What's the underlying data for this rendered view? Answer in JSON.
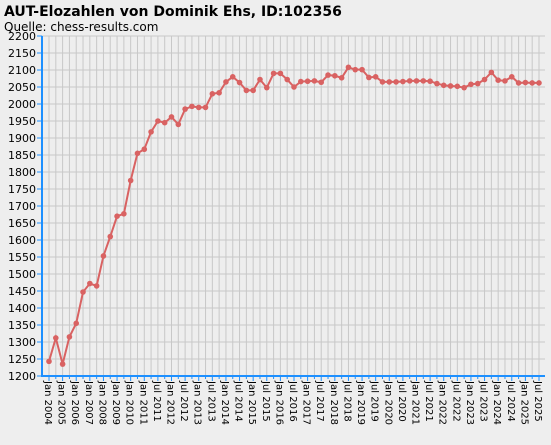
{
  "chart_data": {
    "type": "line",
    "title": "AUT-Elozahlen von Dominik Ehs, ID:102356",
    "subtitle": "Quelle: chess-results.com",
    "categories": [
      "Jan 2004",
      null,
      "Jan 2005",
      null,
      "Jan 2006",
      null,
      "Jan 2007",
      null,
      "Jan 2008",
      null,
      "Jan 2009",
      null,
      "Jan 2010",
      null,
      "Jan 2011",
      null,
      "Jul 2011",
      null,
      "Jan 2012",
      null,
      "Jul 2012",
      null,
      "Jan 2013",
      null,
      "Jul 2013",
      null,
      "Jan 2014",
      null,
      "Jul 2014",
      null,
      "Jan 2015",
      null,
      "Jul 2015",
      null,
      "Jan 2016",
      null,
      "Jul 2016",
      null,
      "Jan 2017",
      null,
      "Jul 2017",
      null,
      "Jan 2018",
      null,
      "Jul 2018",
      null,
      "Jan 2019",
      null,
      "Jul 2019",
      null,
      "Jan 2020",
      null,
      "Jul 2020",
      null,
      "Jan 2021",
      null,
      "Jul 2021",
      null,
      "Jan 2022",
      null,
      "Jul 2022",
      null,
      "Jan 2023",
      null,
      "Jul 2023",
      null,
      "Jan 2024",
      null,
      "Jul 2024",
      null,
      "Jan 2025",
      null,
      "Jul 2025"
    ],
    "series": [
      {
        "name": "Elo",
        "color": "#d96262",
        "values": [
          1243,
          1312,
          1235,
          1315,
          1355,
          1447,
          1472,
          1465,
          1553,
          1610,
          1670,
          1677,
          1775,
          1855,
          1867,
          1918,
          1950,
          1945,
          1962,
          1940,
          1985,
          1993,
          1990,
          1990,
          2030,
          2033,
          2065,
          2080,
          2063,
          2040,
          2040,
          2072,
          2048,
          2090,
          2090,
          2072,
          2050,
          2066,
          2067,
          2068,
          2064,
          2085,
          2083,
          2077,
          2108,
          2101,
          2101,
          2078,
          2080,
          2065,
          2065,
          2065,
          2066,
          2068,
          2068,
          2068,
          2067,
          2060,
          2055,
          2053,
          2052,
          2048,
          2058,
          2060,
          2072,
          2093,
          2070,
          2068,
          2080,
          2062,
          2063,
          2062,
          2062
        ]
      }
    ],
    "ylim": [
      1200,
      2200
    ],
    "yticks": [
      1200,
      1250,
      1300,
      1350,
      1400,
      1450,
      1500,
      1550,
      1600,
      1650,
      1700,
      1750,
      1800,
      1850,
      1900,
      1950,
      2000,
      2050,
      2100,
      2150,
      2200
    ],
    "grid": true
  }
}
